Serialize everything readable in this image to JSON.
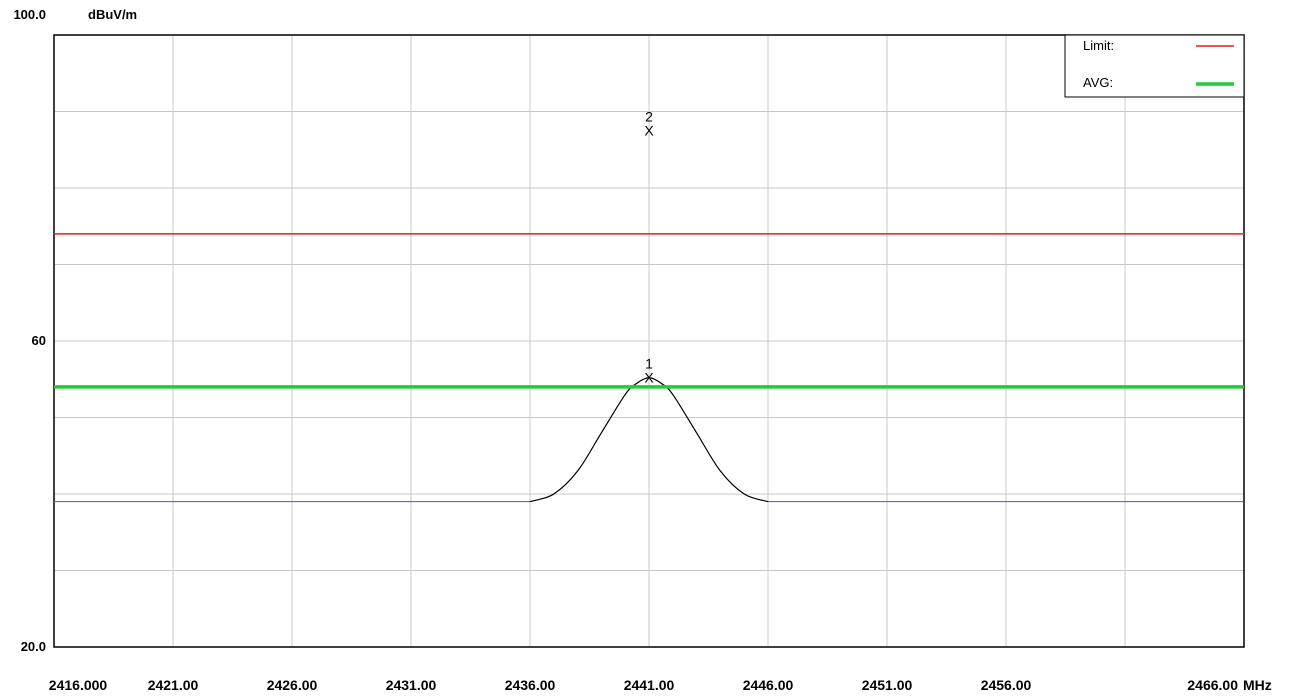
{
  "chart_data": {
    "type": "line",
    "y_unit": "dBuV/m",
    "x_unit": "MHz",
    "xlim": [
      2416.0,
      2466.0
    ],
    "ylim": [
      20.0,
      100.0
    ],
    "y_ticks": [
      {
        "value": 100.0,
        "label": "100.0"
      },
      {
        "value": 60,
        "label": "60"
      },
      {
        "value": 20.0,
        "label": "20.0"
      }
    ],
    "x_ticks": [
      {
        "value": 2416.0,
        "label": "2416.000"
      },
      {
        "value": 2421.0,
        "label": "2421.00"
      },
      {
        "value": 2426.0,
        "label": "2426.00"
      },
      {
        "value": 2431.0,
        "label": "2431.00"
      },
      {
        "value": 2436.0,
        "label": "2436.00"
      },
      {
        "value": 2441.0,
        "label": "2441.00"
      },
      {
        "value": 2446.0,
        "label": "2446.00"
      },
      {
        "value": 2451.0,
        "label": "2451.00"
      },
      {
        "value": 2456.0,
        "label": "2456.00"
      },
      {
        "value": 2466.0,
        "label": "2466.00"
      }
    ],
    "grid_x": [
      2421,
      2426,
      2431,
      2436,
      2441,
      2446,
      2451,
      2456,
      2461
    ],
    "grid_y": [
      30,
      40,
      50,
      60,
      70,
      80,
      90
    ],
    "grid": true,
    "legend": {
      "position": "top-right",
      "entries": [
        {
          "label": "Limit:",
          "color": "#e02020"
        },
        {
          "label": "AVG:",
          "color": "#22cc33"
        }
      ]
    },
    "series": [
      {
        "name": "Limit:",
        "color": "#e02020",
        "type": "hline",
        "y": 74
      },
      {
        "name": "AVG:",
        "color": "#22cc33",
        "type": "hline",
        "y": 54
      },
      {
        "color": "#000000",
        "baseline_color": "#5050c8",
        "x": [
          2416.0,
          2436.0,
          2437.0,
          2438.0,
          2439.0,
          2440.0,
          2440.5,
          2441.0,
          2441.5,
          2442.0,
          2443.0,
          2444.0,
          2445.0,
          2446.0,
          2466.0
        ],
        "y": [
          39.0,
          39.0,
          40.0,
          43.0,
          48.0,
          53.0,
          54.5,
          55.2,
          54.5,
          53.0,
          48.0,
          43.0,
          40.0,
          39.0,
          39.0
        ]
      }
    ],
    "markers": [
      {
        "label": "1",
        "x": 2441.0,
        "y": 55.2
      },
      {
        "label": "2",
        "x": 2441.0,
        "y": 87.5
      }
    ]
  }
}
